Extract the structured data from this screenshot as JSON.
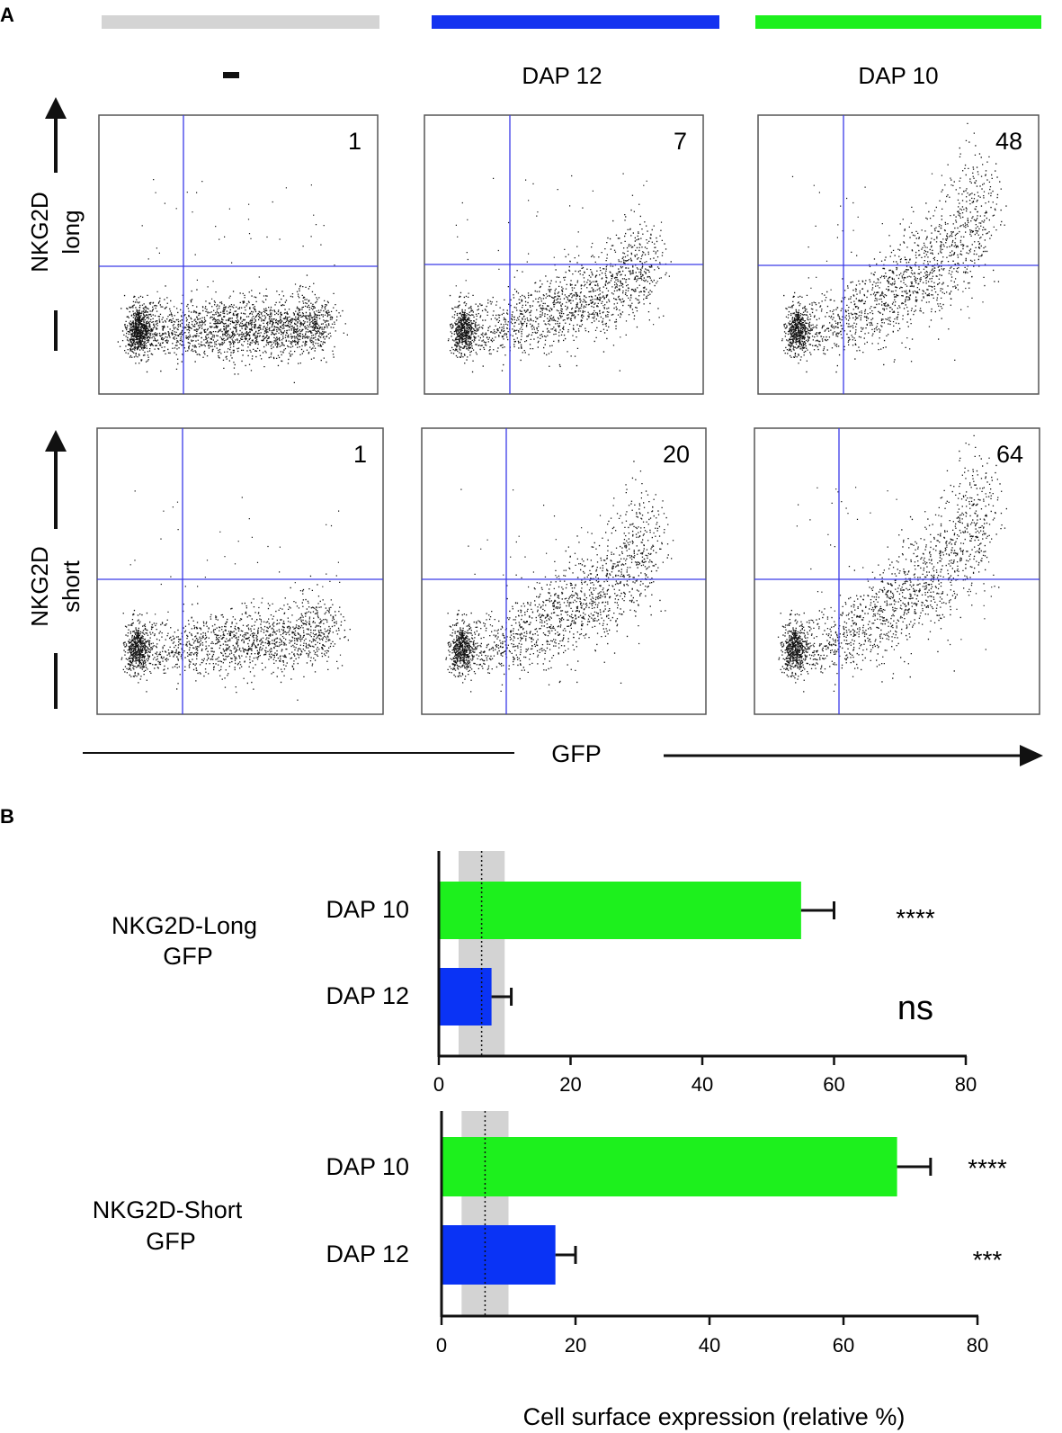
{
  "panel_a": {
    "label": "A",
    "columns": [
      {
        "title": "-",
        "bar_color": "#d4d4d4"
      },
      {
        "title": "DAP 12",
        "bar_color": "#1433f0"
      },
      {
        "title": "DAP 10",
        "bar_color": "#1df01d"
      }
    ],
    "rows": [
      {
        "label_top": "NKG2D",
        "label_bottom": "long",
        "percentages": [
          "1",
          "7",
          "48"
        ]
      },
      {
        "label_top": "NKG2D",
        "label_bottom": "short",
        "percentages": [
          "1",
          "20",
          "64"
        ]
      }
    ],
    "x_axis_label": "GFP",
    "gate_color": "#3a3ae8"
  },
  "chart_data": [
    {
      "type": "bar",
      "orientation": "horizontal",
      "group_label_lines": [
        "NKG2D-Long",
        "GFP"
      ],
      "categories": [
        "DAP 10",
        "DAP 12"
      ],
      "values": [
        55,
        8
      ],
      "errors": [
        5,
        3
      ],
      "bar_colors": [
        "#1df01d",
        "#0a33f5"
      ],
      "significance": [
        "****",
        "ns"
      ],
      "xlim": [
        0,
        80
      ],
      "xticks": [
        0,
        20,
        40,
        60,
        80
      ],
      "reference_line": 6.5,
      "reference_band": [
        3,
        10
      ]
    },
    {
      "type": "bar",
      "orientation": "horizontal",
      "group_label_lines": [
        "NKG2D-Short",
        "GFP"
      ],
      "categories": [
        "DAP 10",
        "DAP 12"
      ],
      "values": [
        68,
        17
      ],
      "errors": [
        5,
        3
      ],
      "bar_colors": [
        "#1df01d",
        "#0a33f5"
      ],
      "significance": [
        "****",
        "***"
      ],
      "xlim": [
        0,
        80
      ],
      "xticks": [
        0,
        20,
        40,
        60,
        80
      ],
      "reference_line": 6.5,
      "reference_band": [
        3,
        10
      ]
    }
  ],
  "panel_b": {
    "label": "B",
    "xlabel": "Cell surface expression (relative %)"
  }
}
